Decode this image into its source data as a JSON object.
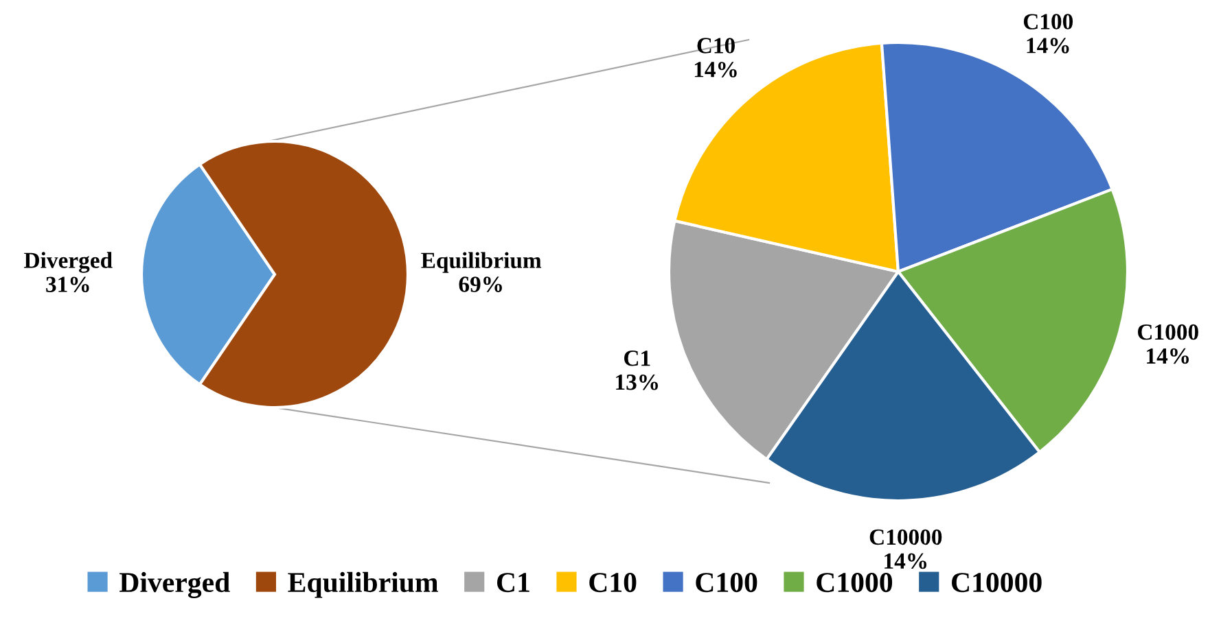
{
  "chart_data": [
    {
      "type": "pie",
      "categories": [
        "Diverged",
        "Equilibrium"
      ],
      "values": [
        31,
        69
      ],
      "value_labels": [
        "31%",
        "69%"
      ],
      "colors": [
        "#5b9bd5",
        "#9e480e"
      ],
      "legend": "bottom"
    },
    {
      "type": "pie",
      "categories": [
        "C1",
        "C10",
        "C100",
        "C1000",
        "C10000"
      ],
      "values": [
        13,
        14,
        14,
        14,
        14
      ],
      "value_labels": [
        "13%",
        "14%",
        "14%",
        "14%",
        "14%"
      ],
      "colors": [
        "#a5a5a5",
        "#ffc000",
        "#4472c4",
        "#70ad47",
        "#255e91"
      ],
      "legend": "bottom"
    }
  ]
}
